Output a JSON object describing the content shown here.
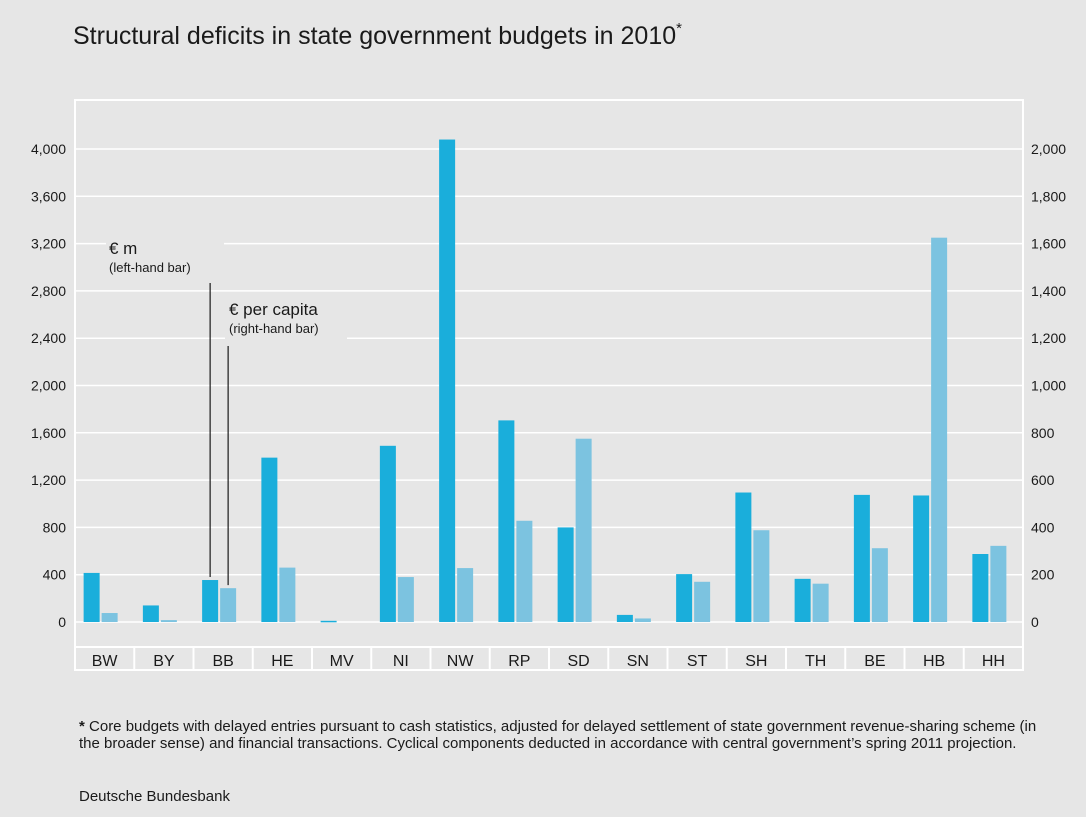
{
  "title": "Structural deficits in state government budgets in 2010",
  "title_marker": "*",
  "footnote": {
    "marker": "*",
    "text": "Core budgets with delayed entries pursuant to cash statistics, adjusted for delayed settlement of state government revenue-sharing scheme (in the broader sense) and financial transactions. Cyclical components deducted in accordance with central government’s spring 2011 projection."
  },
  "source": "Deutsche Bundesbank",
  "chart_data": {
    "type": "bar",
    "categories": [
      "BW",
      "BY",
      "BB",
      "HE",
      "MV",
      "NI",
      "NW",
      "RP",
      "SD",
      "SN",
      "ST",
      "SH",
      "TH",
      "BE",
      "HB",
      "HH"
    ],
    "series": [
      {
        "name": "€ m",
        "axis": "left",
        "color": "#1aaedb",
        "values": [
          415,
          140,
          355,
          1390,
          10,
          1490,
          4080,
          1705,
          800,
          60,
          405,
          1095,
          365,
          1075,
          1070,
          575
        ]
      },
      {
        "name": "€ per capita",
        "axis": "right",
        "color": "#7cc3e0",
        "values": [
          38,
          8,
          143,
          230,
          0,
          190,
          228,
          428,
          775,
          15,
          170,
          388,
          162,
          312,
          1625,
          322
        ]
      }
    ],
    "annotations": [
      {
        "label": "€ m",
        "sublabel": "(left-hand bar)",
        "category": "BB",
        "series": 0
      },
      {
        "label": "€ per capita",
        "sublabel": "(right-hand bar)",
        "category": "BB",
        "series": 1
      }
    ],
    "y_left": {
      "ticks": [
        "0",
        "400",
        "800",
        "1,200",
        "1,600",
        "2,000",
        "2,400",
        "2,800",
        "3,200",
        "3,600",
        "4,000"
      ],
      "range": [
        -400,
        4400
      ]
    },
    "y_right": {
      "ticks": [
        "0",
        "200",
        "400",
        "600",
        "800",
        "1,000",
        "1,200",
        "1,400",
        "1,600",
        "1,800",
        "2,000"
      ],
      "range": [
        -200,
        2200
      ]
    },
    "grid": true
  }
}
